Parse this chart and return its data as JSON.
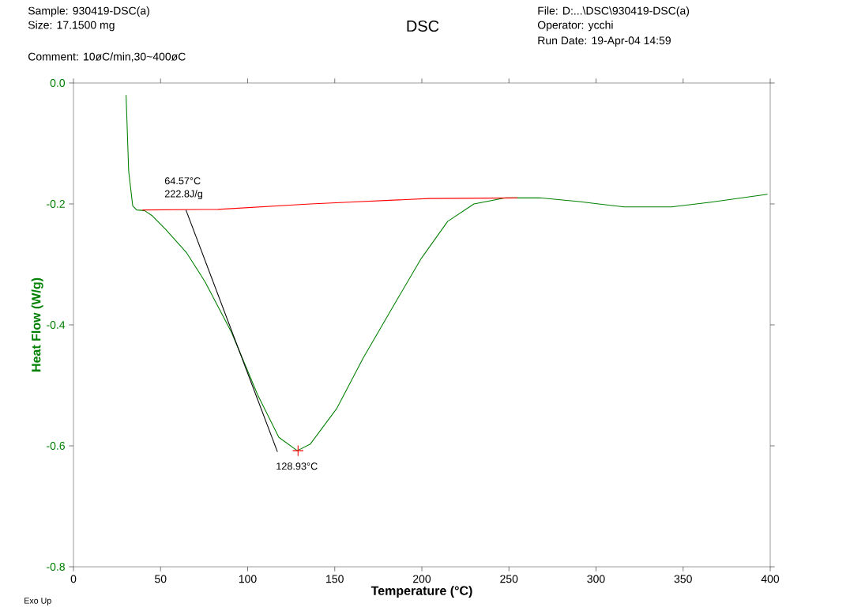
{
  "chart_data": {
    "type": "line",
    "title": "DSC",
    "xlabel": "Temperature (°C)",
    "ylabel": "Heat Flow (W/g)",
    "annotations": [
      "Sample: 930419-DSC(a)",
      "Size:   17.1500 mg",
      "Comment: 10øC/min,30~400øC",
      "File: D:...\\DSC\\930419-DSC(a)",
      "Operator: ycchi",
      "Run Date: 19-Apr-04 14:59",
      "Exo Up",
      "64.57°C",
      "222.8J/g",
      "128.93°C"
    ],
    "series": [
      {
        "color": "#008000",
        "x": [
          30.2,
          31.7,
          34,
          36.3,
          40.8,
          45.4,
          52.9,
          65,
          75.6,
          90.7,
          105.8,
          117.9,
          128.5,
          136,
          151.2,
          166.3,
          184.6,
          199.7,
          214.8,
          229.9,
          248,
          267.7,
          290.3,
          316.1,
          343.3,
          366,
          398.5
        ],
        "values": [
          -0.02,
          -0.146,
          -0.203,
          -0.21,
          -0.211,
          -0.22,
          -0.242,
          -0.281,
          -0.329,
          -0.412,
          -0.516,
          -0.586,
          -0.608,
          -0.597,
          -0.538,
          -0.455,
          -0.364,
          -0.29,
          -0.229,
          -0.2,
          -0.19,
          -0.19,
          -0.196,
          -0.205,
          -0.205,
          -0.197,
          -0.184
        ]
      },
      {
        "color": "#ff0000",
        "x": [
          39.6,
          83,
          136,
          204,
          254.9
        ],
        "values": [
          -0.21,
          -0.209,
          -0.2,
          -0.191,
          -0.19
        ]
      },
      {
        "color": "#000000",
        "x": [
          64.57,
          117.1
        ],
        "values": [
          -0.21,
          -0.61
        ]
      },
      {
        "type": "scatter",
        "color": "#ff0000",
        "marker": "cross",
        "x": [
          128.93
        ],
        "values": [
          -0.608
        ]
      }
    ],
    "xlim": [
      0,
      400
    ],
    "ylim": [
      -0.8,
      0.0
    ],
    "xticks": [
      0,
      50,
      100,
      150,
      200,
      250,
      300,
      350,
      400
    ],
    "yticks": [
      {
        "value": -0.8,
        "label": "-0.8"
      },
      {
        "value": -0.6,
        "label": "-0.6"
      },
      {
        "value": -0.4,
        "label": "-0.4"
      },
      {
        "value": -0.2,
        "label": "-0.2"
      },
      {
        "value": 0.0,
        "label": "0.0"
      }
    ]
  }
}
